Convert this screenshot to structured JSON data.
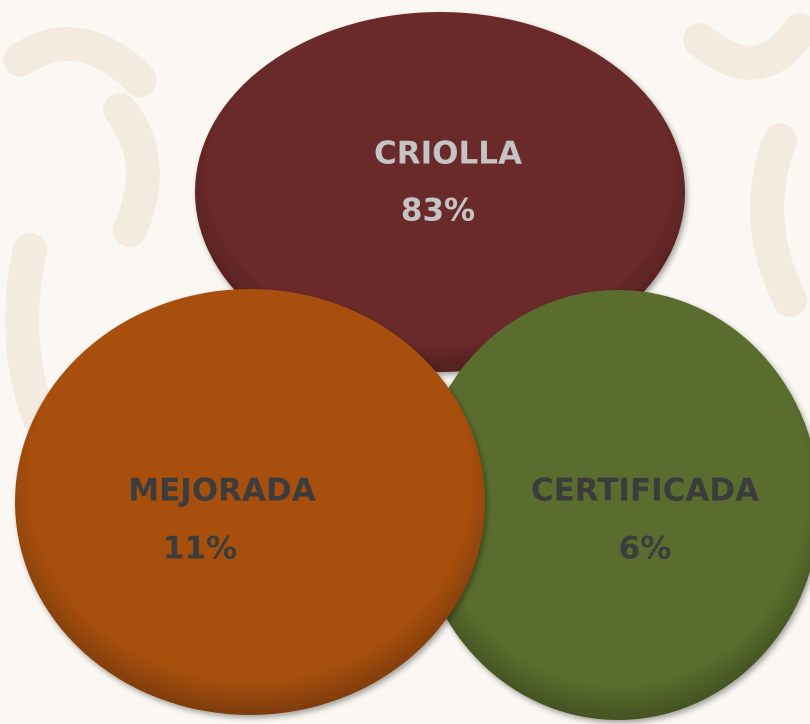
{
  "nodes": [
    {
      "label": "CRIOLLA",
      "value": "83%"
    },
    {
      "label": "CERTIFICADA",
      "value": "6%"
    },
    {
      "label": "MEJORADA",
      "value": "11%"
    }
  ]
}
